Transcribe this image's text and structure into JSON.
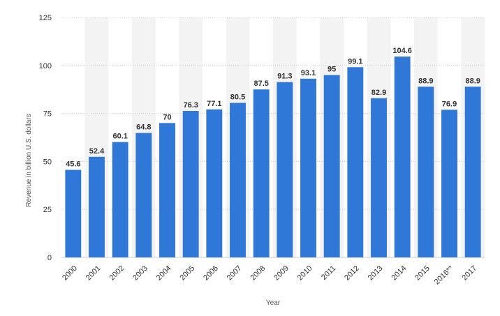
{
  "chart_data": {
    "type": "bar",
    "xlabel": "Year",
    "ylabel": "Revenue in billion U.S. dollars",
    "ylim": [
      0,
      125
    ],
    "yticks": [
      0,
      25,
      50,
      75,
      100,
      125
    ],
    "grid": true,
    "categories": [
      "2000",
      "2001",
      "2002",
      "2003",
      "2004",
      "2005",
      "2006",
      "2007",
      "2008",
      "2009",
      "2010",
      "2011",
      "2012",
      "2013",
      "2014",
      "2015",
      "2016**",
      "2017"
    ],
    "series": [
      {
        "values": [
          45.6,
          52.4,
          60.1,
          64.8,
          70,
          76.3,
          77.1,
          80.5,
          87.5,
          91.3,
          93.1,
          95,
          99.1,
          82.9,
          104.6,
          88.9,
          76.9,
          88.9
        ],
        "labels": [
          "45.6",
          "52.4",
          "60.1",
          "64.8",
          "70",
          "76.3",
          "77.1",
          "80.5",
          "87.5",
          "91.3",
          "93.1",
          "95",
          "99.1",
          "82.9",
          "104.6",
          "88.9",
          "76.9",
          "88.9"
        ]
      }
    ],
    "colors": {
      "bar": "#2f78d8",
      "band": "#f3f3f3",
      "grid": "#c8c8c8"
    }
  }
}
